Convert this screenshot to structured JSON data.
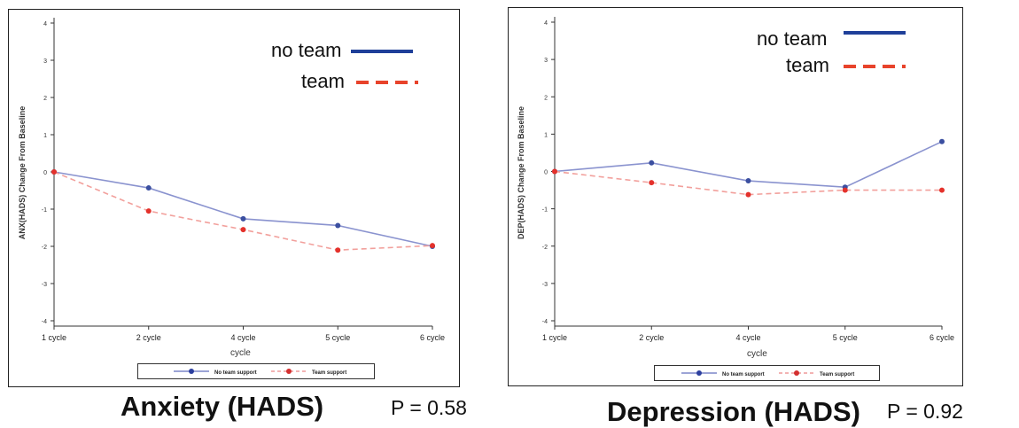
{
  "chart_data": [
    {
      "type": "line",
      "caption": "Anxiety (HADS)",
      "p_value": "P = 0.58",
      "ylabel": "ANX(HADS) Change From Baseline",
      "xlabel": "cycle",
      "categories": [
        "1 cycle",
        "2 cycle",
        "4 cycle",
        "5 cycle",
        "6 cycle"
      ],
      "y_ticks": [
        "4",
        "3",
        "2",
        "1",
        "0",
        "-1",
        "-2",
        "-3",
        "-4"
      ],
      "ylim": [
        -4,
        4
      ],
      "grid": false,
      "series": [
        {
          "name": "No team support",
          "values": [
            0,
            -0.43,
            -1.26,
            -1.44,
            -2.0
          ],
          "color": "#3b4fa0",
          "dash": "solid"
        },
        {
          "name": "Team support",
          "values": [
            0,
            -1.05,
            -1.55,
            -2.1,
            -1.98
          ],
          "color": "#e4312b",
          "dash": "dashed"
        }
      ],
      "overlay_legend": [
        {
          "label": "no team",
          "color": "#1f3f99",
          "dash": "solid"
        },
        {
          "label": "team",
          "color": "#e8432b",
          "dash": "dashed"
        }
      ]
    },
    {
      "type": "line",
      "caption": "Depression (HADS)",
      "p_value": "P = 0.92",
      "ylabel": "DEP(HADS) Change From Baseline",
      "xlabel": "cycle",
      "categories": [
        "1 cycle",
        "2 cycle",
        "4 cycle",
        "5 cycle",
        "6 cycle"
      ],
      "y_ticks": [
        "4",
        "3",
        "2",
        "1",
        "0",
        "-1",
        "-2",
        "-3",
        "-4"
      ],
      "ylim": [
        -4,
        4
      ],
      "grid": false,
      "series": [
        {
          "name": "No team support",
          "values": [
            0,
            0.23,
            -0.25,
            -0.42,
            0.8
          ],
          "color": "#3b4fa0",
          "dash": "solid"
        },
        {
          "name": "Team support",
          "values": [
            0,
            -0.3,
            -0.62,
            -0.5,
            -0.5
          ],
          "color": "#e4312b",
          "dash": "dashed"
        }
      ],
      "overlay_legend": [
        {
          "label": "no team",
          "color": "#1f3f99",
          "dash": "solid"
        },
        {
          "label": "team",
          "color": "#e8432b",
          "dash": "dashed"
        }
      ]
    }
  ]
}
